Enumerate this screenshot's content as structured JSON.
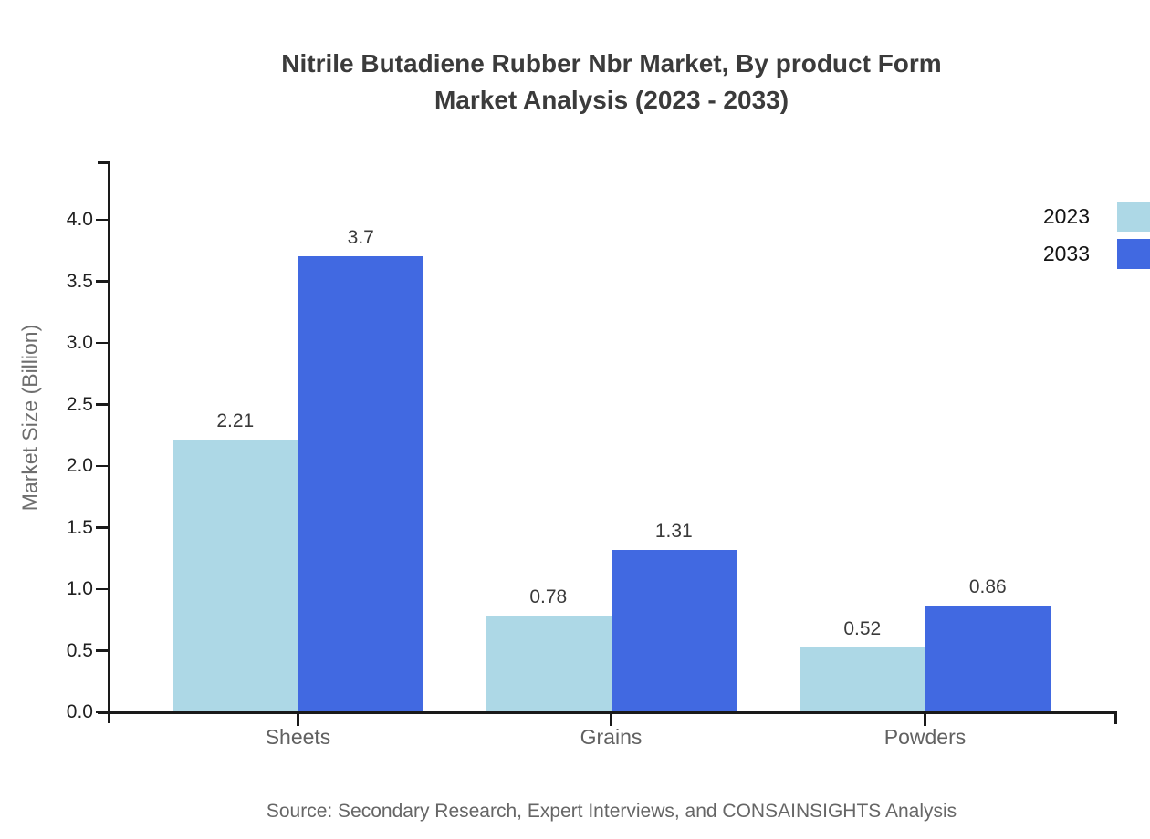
{
  "chart_data": {
    "type": "bar",
    "title": "Nitrile Butadiene Rubber Nbr Market, By product Form Market Analysis (2023 - 2033)",
    "title_lines": [
      "Nitrile Butadiene Rubber Nbr Market, By product Form",
      "Market Analysis (2023 - 2033)"
    ],
    "categories": [
      "Sheets",
      "Grains",
      "Powders"
    ],
    "series": [
      {
        "name": "2023",
        "color": "#ADD8E6",
        "values": [
          2.21,
          0.78,
          0.52
        ],
        "value_labels": [
          "2.21",
          "0.78",
          "0.52"
        ]
      },
      {
        "name": "2033",
        "color": "#4169E1",
        "values": [
          3.7,
          1.31,
          0.86
        ],
        "value_labels": [
          "3.7",
          "1.31",
          "0.86"
        ]
      }
    ],
    "xlabel": "",
    "ylabel": "Market Size (Billion)",
    "ylim": [
      0,
      4.5
    ],
    "yticks": [
      0.0,
      0.5,
      1.0,
      1.5,
      2.0,
      2.5,
      3.0,
      3.5,
      4.0
    ],
    "ytick_labels": [
      "0.0",
      "0.5",
      "1.0",
      "1.5",
      "2.0",
      "2.5",
      "3.0",
      "3.5",
      "4.0"
    ],
    "grid": false,
    "legend_position": "upper-right-outside",
    "source": "Source: Secondary Research, Expert Interviews, and CONSAINSIGHTS Analysis"
  },
  "colors": {
    "axis": "#1a1a1a",
    "title_text": "#3b3b3b",
    "axis_label_text": "#6e6e6e",
    "ytick_text": "#202020",
    "xtick_text": "#616161",
    "value_label_text": "#3a3a3a",
    "legend_text": "#141414",
    "source_text": "#666666",
    "background": "#ffffff"
  }
}
